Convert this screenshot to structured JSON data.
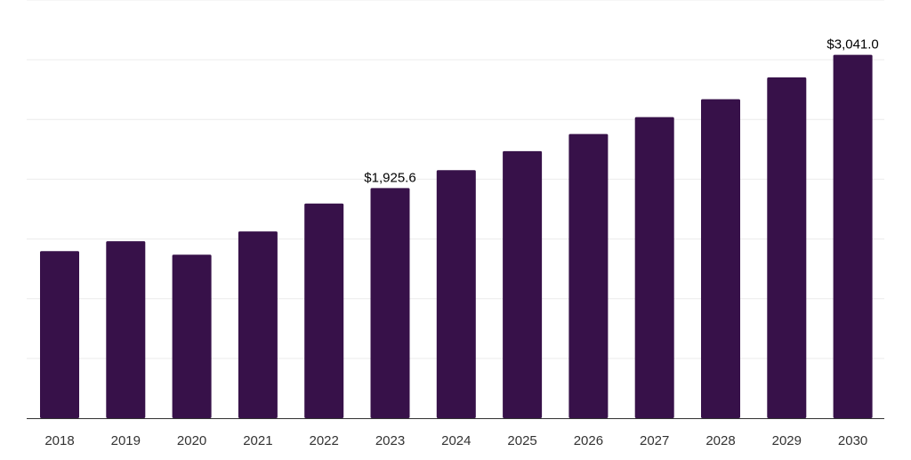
{
  "chart_data": {
    "type": "bar",
    "categories": [
      "2018",
      "2019",
      "2020",
      "2021",
      "2022",
      "2023",
      "2024",
      "2025",
      "2026",
      "2027",
      "2028",
      "2029",
      "2030"
    ],
    "values": [
      1398,
      1481,
      1368,
      1563,
      1797,
      1925.6,
      2076,
      2235,
      2378,
      2520,
      2670,
      2852,
      3041.0
    ],
    "data_labels": [
      {
        "index": 5,
        "text": "$1,925.6"
      },
      {
        "index": 12,
        "text": "$3,041.0"
      }
    ],
    "title": "",
    "xlabel": "",
    "ylabel": "",
    "ylim": [
      0,
      3500
    ],
    "ytick_step": 500,
    "grid": true,
    "legend": "none",
    "colors": {
      "bar": "#371149",
      "grid": "#ececec",
      "axis": "#333333"
    }
  }
}
